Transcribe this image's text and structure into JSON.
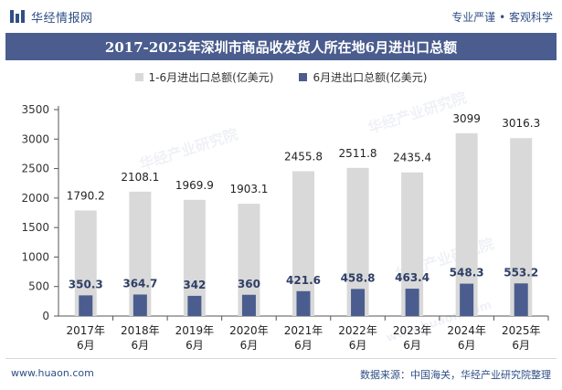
{
  "header": {
    "brand": "华经情报网",
    "tagline": "专业严谨 • 客观科学"
  },
  "title": "2017-2025年深圳市商品收发货人所在地6月进出口总额",
  "legend": {
    "series1": "1-6月进出口总额(亿美元)",
    "series2": "6月进出口总额(亿美元)"
  },
  "footer": {
    "left": "www.huaon.com",
    "right": "数据来源：中国海关，华经产业研究院整理"
  },
  "watermark": {
    "text": "华经产业研究院",
    "url": "www.huaon.com"
  },
  "chart_data": {
    "type": "bar",
    "categories": [
      "2017年\n6月",
      "2018年\n6月",
      "2019年\n6月",
      "2020年\n6月",
      "2021年\n6月",
      "2022年\n6月",
      "2023年\n6月",
      "2024年\n6月",
      "2025年\n6月"
    ],
    "series": [
      {
        "name": "1-6月进出口总额(亿美元)",
        "values": [
          1790.2,
          2108.1,
          1969.9,
          1903.1,
          2455.8,
          2511.8,
          2435.4,
          3099,
          3016.3
        ],
        "labels": [
          "1790.2",
          "2108.1",
          "1969.9",
          "1903.1",
          "2455.8",
          "2511.8",
          "2435.4",
          "3099",
          "3016.3"
        ],
        "color": "#d9d9d9"
      },
      {
        "name": "6月进出口总额(亿美元)",
        "values": [
          350.3,
          364.7,
          342,
          360,
          421.6,
          458.8,
          463.4,
          548.3,
          553.2
        ],
        "labels": [
          "350.3",
          "364.7",
          "342",
          "360",
          "421.6",
          "458.8",
          "463.4",
          "548.3",
          "553.2"
        ],
        "color": "#4a5d8e"
      }
    ],
    "ylim": [
      0,
      3500
    ],
    "yticks": [
      0,
      500,
      1000,
      1500,
      2000,
      2500,
      3000,
      3500
    ],
    "grid": false,
    "legend_position": "top"
  }
}
